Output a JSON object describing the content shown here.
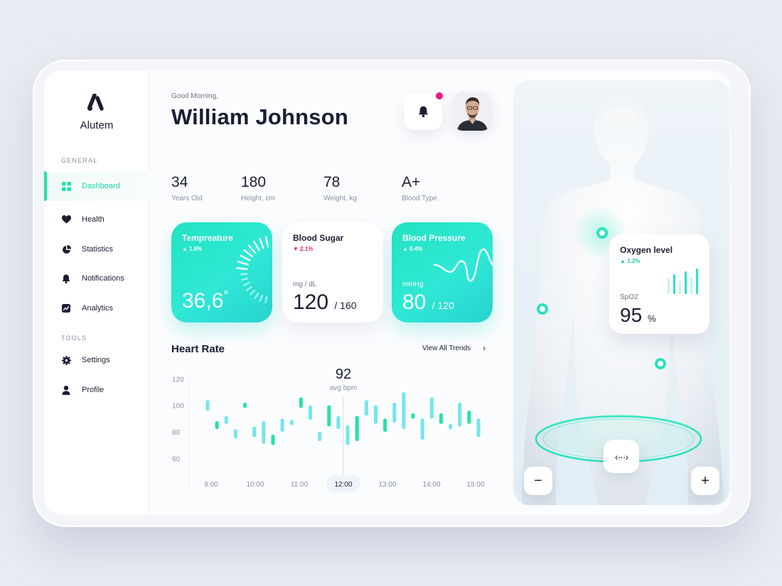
{
  "brand": {
    "name": "Alutem"
  },
  "sidebar": {
    "general_label": "GENERAL",
    "tools_label": "TOOLS",
    "items": [
      {
        "label": "Dashboard",
        "icon": "grid-icon",
        "active": true
      },
      {
        "label": "Health",
        "icon": "heart-icon"
      },
      {
        "label": "Statistics",
        "icon": "pie-chart-icon"
      },
      {
        "label": "Notifications",
        "icon": "bell-icon"
      },
      {
        "label": "Analytics",
        "icon": "analytics-icon"
      }
    ],
    "tools": [
      {
        "label": "Settings",
        "icon": "gear-icon"
      },
      {
        "label": "Profile",
        "icon": "user-icon"
      }
    ]
  },
  "header": {
    "greeting": "Good Morning,",
    "user_name": "William Johnson"
  },
  "stats": [
    {
      "value": "34",
      "label": "Years Old"
    },
    {
      "value": "180",
      "label": "Height, cm"
    },
    {
      "value": "78",
      "label": "Weight, kg"
    },
    {
      "value": "A+",
      "label": "Blood Type"
    }
  ],
  "cards": {
    "temperature": {
      "title": "Tempreature",
      "delta": "1.6%",
      "value": "36,6",
      "degree": "°"
    },
    "blood_sugar": {
      "title": "Blood Sugar",
      "delta": "2.1%",
      "unit": "mg / dL",
      "value": "120",
      "sub": "/ 160"
    },
    "blood_pressure": {
      "title": "Blood Pressure",
      "delta": "0.4%",
      "unit": "mmHg",
      "value": "80",
      "sub": "/ 120"
    }
  },
  "heart_rate": {
    "title": "Heart Rate",
    "view_all": "View All Trends",
    "avg_value": "92",
    "avg_label": "avg bpm"
  },
  "oxygen": {
    "title": "Oxygen level",
    "delta": "1.2%",
    "label": "SpO2",
    "value": "95",
    "unit": "%"
  },
  "colors": {
    "accent": "#22e0b0",
    "teal": "#2fe8d6",
    "alert": "#ea1a7f",
    "dark": "#1b1e33"
  },
  "chart_data": {
    "type": "bar",
    "title": "Heart Rate",
    "x_ticks": [
      "9:00",
      "10:00",
      "11:00",
      "12:00",
      "13:00",
      "14:00",
      "15:00"
    ],
    "y_ticks": [
      "120",
      "100",
      "80",
      "60"
    ],
    "ylim": [
      50,
      125
    ],
    "highlight_x": "12:00",
    "series": [
      {
        "values": [
          [
            96,
            104
          ],
          [
            88,
            82
          ],
          [
            92,
            86
          ],
          [
            82,
            75
          ],
          [
            102,
            98
          ],
          [
            84,
            76
          ],
          [
            88,
            71
          ],
          [
            78,
            70
          ],
          [
            90,
            80
          ],
          [
            89,
            85
          ],
          [
            106,
            98
          ],
          [
            100,
            89
          ],
          [
            80,
            73
          ],
          [
            100,
            84
          ],
          [
            92,
            82
          ],
          [
            85,
            70
          ],
          [
            92,
            73
          ],
          [
            104,
            92
          ],
          [
            100,
            86
          ],
          [
            90,
            80
          ],
          [
            102,
            87
          ],
          [
            110,
            82
          ],
          [
            94,
            90
          ],
          [
            90,
            74
          ],
          [
            106,
            90
          ],
          [
            94,
            86
          ],
          [
            86,
            82
          ],
          [
            102,
            84
          ],
          [
            96,
            86
          ],
          [
            90,
            76
          ]
        ]
      }
    ]
  }
}
